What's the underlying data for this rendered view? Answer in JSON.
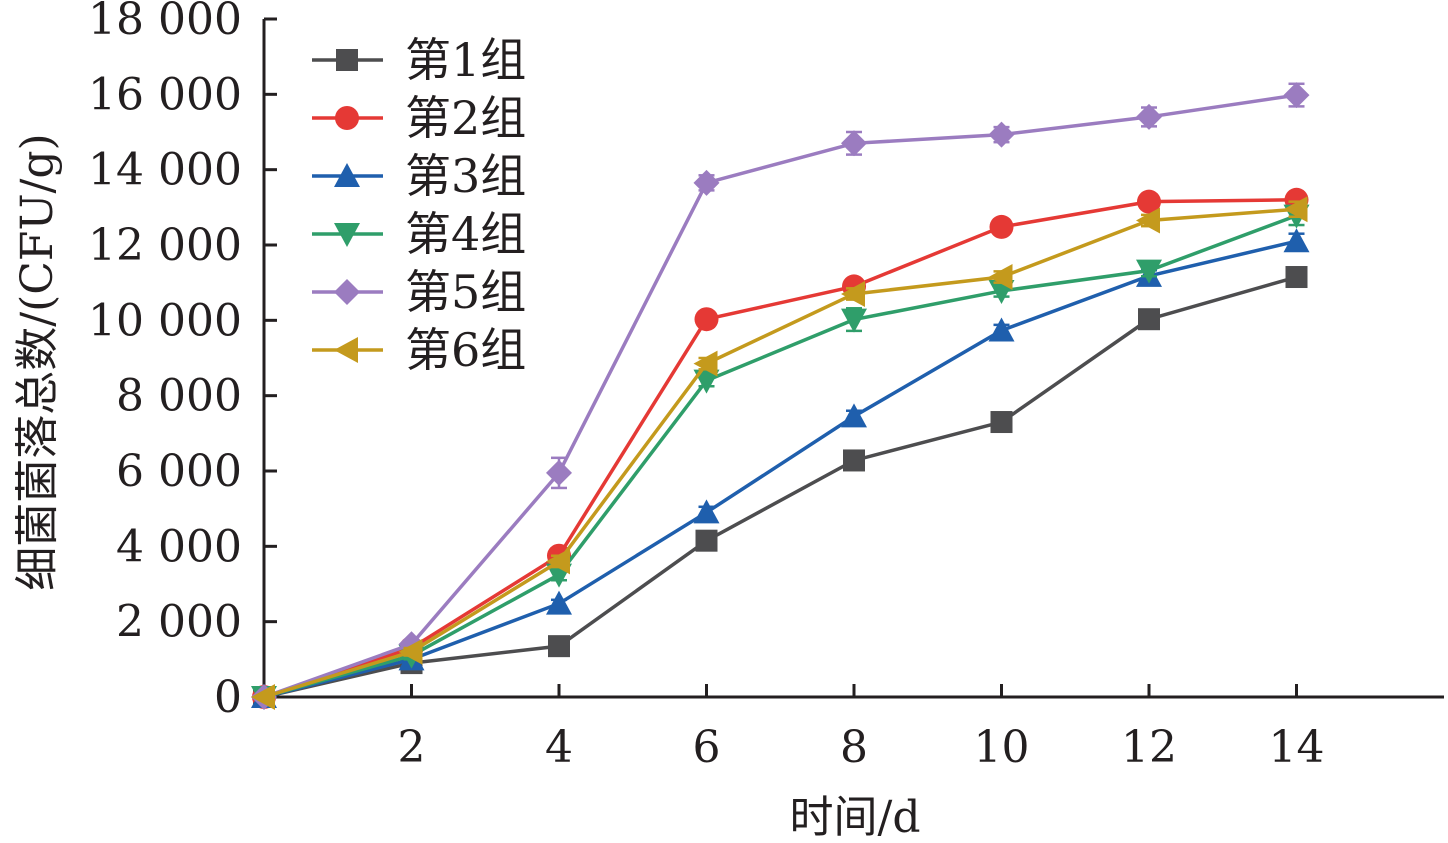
{
  "chart_data": {
    "type": "line",
    "xlabel": "时间/d",
    "ylabel": "细菌菌落总数/(CFU/g)",
    "x": [
      0,
      2,
      4,
      6,
      8,
      10,
      12,
      14
    ],
    "xticks": [
      2,
      4,
      6,
      8,
      10,
      12,
      14
    ],
    "xtick_labels": [
      "2",
      "4",
      "6",
      "8",
      "10",
      "12",
      "14"
    ],
    "xlim": [
      0,
      16
    ],
    "ylim": [
      0,
      18000
    ],
    "yticks": [
      0,
      2000,
      4000,
      6000,
      8000,
      10000,
      12000,
      14000,
      16000,
      18000
    ],
    "ytick_labels": [
      "0",
      "2 000",
      "4 000",
      "6 000",
      "8 000",
      "10 000",
      "12 000",
      "14 000",
      "16 000",
      "18 000"
    ],
    "grid": false,
    "legend_position": "top-left",
    "series": [
      {
        "name": "第1组",
        "color": "#4d4d4f",
        "marker": "square",
        "values": [
          0,
          900,
          1350,
          4150,
          6280,
          7300,
          10030,
          11150
        ],
        "errors": [
          0,
          80,
          80,
          120,
          150,
          120,
          130,
          200
        ]
      },
      {
        "name": "第2组",
        "color": "#e53935",
        "marker": "circle",
        "values": [
          0,
          1300,
          3750,
          10030,
          10900,
          12480,
          13150,
          13200
        ],
        "errors": [
          0,
          100,
          150,
          150,
          150,
          150,
          150,
          200
        ]
      },
      {
        "name": "第3组",
        "color": "#1f5fad",
        "marker": "triangle-up",
        "values": [
          0,
          1000,
          2480,
          4900,
          7450,
          9730,
          11180,
          12100
        ],
        "errors": [
          0,
          80,
          100,
          150,
          150,
          150,
          150,
          200
        ]
      },
      {
        "name": "第4组",
        "color": "#2f9e6a",
        "marker": "triangle-down",
        "values": [
          0,
          1100,
          3250,
          8400,
          10020,
          10780,
          11320,
          12780
        ],
        "errors": [
          0,
          100,
          150,
          150,
          300,
          150,
          150,
          250
        ]
      },
      {
        "name": "第5组",
        "color": "#9b7cc0",
        "marker": "diamond",
        "values": [
          0,
          1400,
          5950,
          13650,
          14700,
          14930,
          15400,
          15980
        ],
        "errors": [
          0,
          100,
          400,
          200,
          300,
          200,
          250,
          300
        ]
      },
      {
        "name": "第6组",
        "color": "#c49a1d",
        "marker": "triangle-left",
        "values": [
          0,
          1200,
          3600,
          8850,
          10700,
          11150,
          12650,
          12950
        ],
        "errors": [
          0,
          100,
          150,
          150,
          150,
          150,
          150,
          200
        ]
      }
    ]
  }
}
